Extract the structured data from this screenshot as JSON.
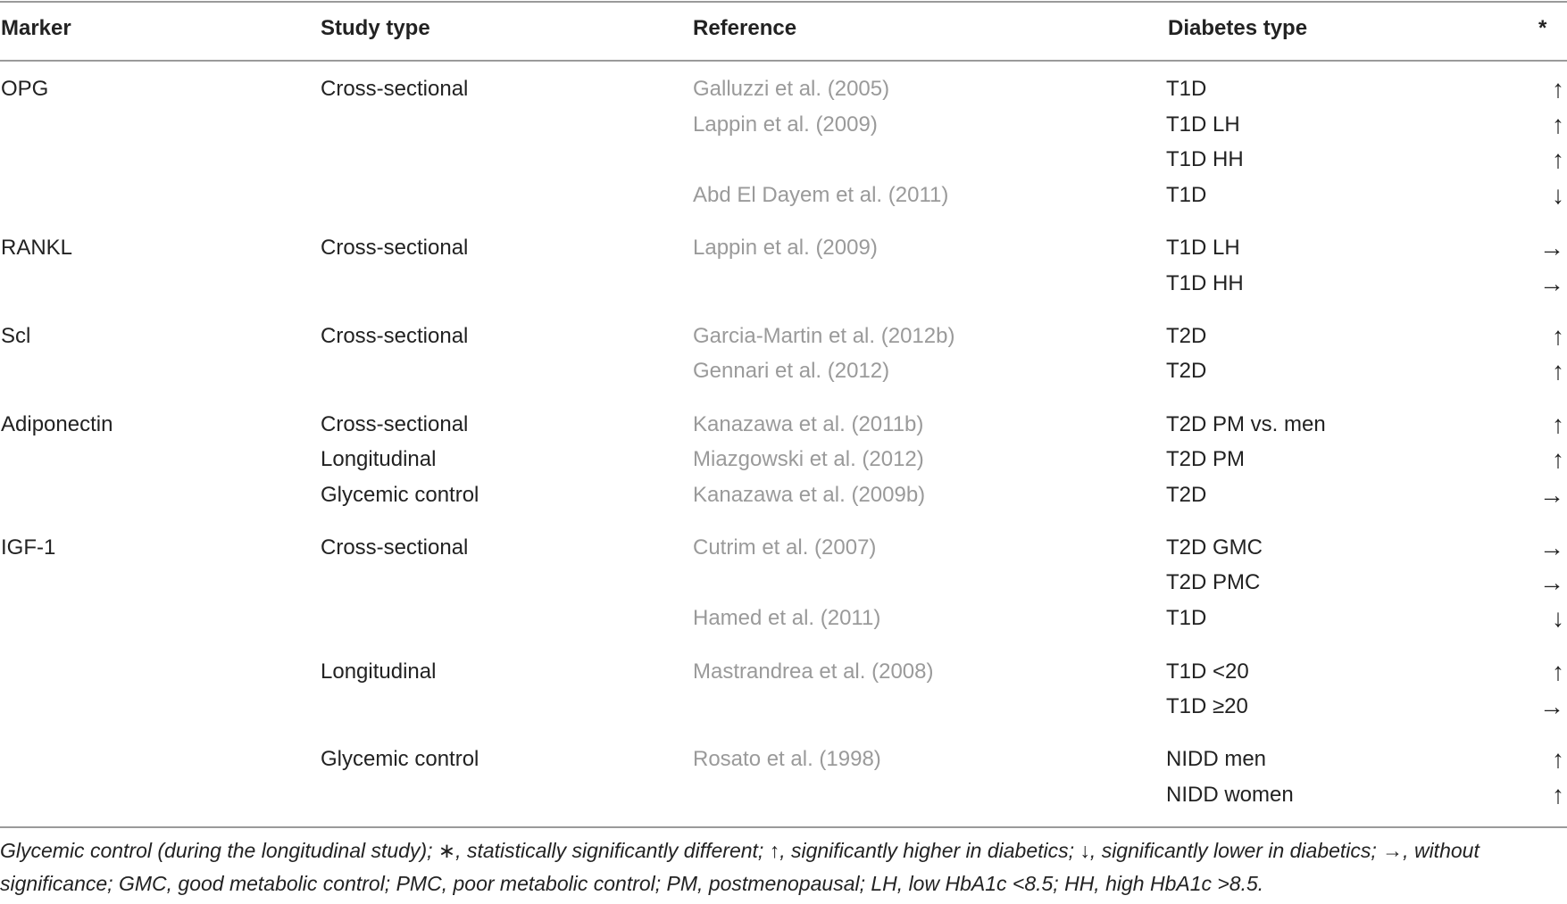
{
  "headers": {
    "marker": "Marker",
    "study_type": "Study type",
    "reference": "Reference",
    "diabetes_type": "Diabetes type",
    "significance": "*"
  },
  "rows": [
    {
      "marker": "OPG",
      "study": "Cross-sectional",
      "reference": "Galluzzi et al. (2005)",
      "diabetes": "T1D",
      "arrow": "↑"
    },
    {
      "marker": "",
      "study": "",
      "reference": "Lappin et al. (2009)",
      "diabetes": "T1D LH",
      "arrow": "↑"
    },
    {
      "marker": "",
      "study": "",
      "reference": "",
      "diabetes": "T1D HH",
      "arrow": "↑"
    },
    {
      "marker": "",
      "study": "",
      "reference": "Abd El Dayem et al. (2011)",
      "diabetes": "T1D",
      "arrow": "↓"
    },
    {
      "marker": "RANKL",
      "study": "Cross-sectional",
      "reference": "Lappin et al. (2009)",
      "diabetes": "T1D LH",
      "arrow": "→"
    },
    {
      "marker": "",
      "study": "",
      "reference": "",
      "diabetes": "T1D HH",
      "arrow": "→"
    },
    {
      "marker": "Scl",
      "study": "Cross-sectional",
      "reference": "Garcia-Martin et al. (2012b)",
      "diabetes": "T2D",
      "arrow": "↑"
    },
    {
      "marker": "",
      "study": "",
      "reference": "Gennari et al. (2012)",
      "diabetes": "T2D",
      "arrow": "↑"
    },
    {
      "marker": "Adiponectin",
      "study": "Cross-sectional",
      "reference": "Kanazawa et al. (2011b)",
      "diabetes": "T2D PM vs. men",
      "arrow": "↑"
    },
    {
      "marker": "",
      "study": "Longitudinal",
      "reference": "Miazgowski et al. (2012)",
      "diabetes": "T2D PM",
      "arrow": "↑"
    },
    {
      "marker": "",
      "study": "Glycemic control",
      "reference": "Kanazawa et al. (2009b)",
      "diabetes": "T2D",
      "arrow": "→"
    },
    {
      "marker": "IGF-1",
      "study": "Cross-sectional",
      "reference": "Cutrim et al. (2007)",
      "diabetes": "T2D GMC",
      "arrow": "→"
    },
    {
      "marker": "",
      "study": "",
      "reference": "",
      "diabetes": "T2D PMC",
      "arrow": "→"
    },
    {
      "marker": "",
      "study": "",
      "reference": "Hamed et al. (2011)",
      "diabetes": "T1D",
      "arrow": "↓"
    },
    {
      "marker": "",
      "study": "Longitudinal",
      "reference": "Mastrandrea et al. (2008)",
      "diabetes": "T1D <20",
      "arrow": "↑"
    },
    {
      "marker": "",
      "study": "",
      "reference": "",
      "diabetes": "T1D ≥20",
      "arrow": "→"
    },
    {
      "marker": "",
      "study": "Glycemic control",
      "reference": "Rosato et al. (1998)",
      "diabetes": "NIDD men",
      "arrow": "↑"
    },
    {
      "marker": "",
      "study": "",
      "reference": "",
      "diabetes": "NIDD women",
      "arrow": "↑"
    }
  ],
  "footnote": "Glycemic control (during the longitudinal study); ∗, statistically significantly different; ↑, significantly higher in diabetics; ↓, significantly lower in diabetics; →, without significance; GMC, good metabolic control; PMC, poor metabolic control; PM, postmenopausal; LH, low HbA1c <8.5; HH, high HbA1c >8.5."
}
